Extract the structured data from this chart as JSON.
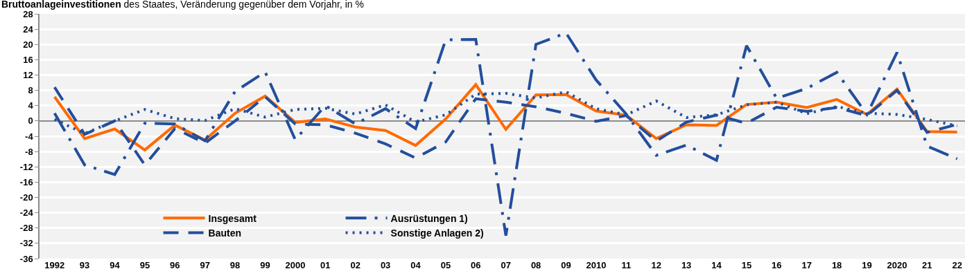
{
  "chart_data": {
    "type": "line",
    "title": "Bruttoanlageinvestitionen des Staates, Veränderung gegenüber dem Vorjahr, in %",
    "categories": [
      "1992",
      "93",
      "94",
      "95",
      "96",
      "97",
      "98",
      "99",
      "2000",
      "01",
      "02",
      "03",
      "04",
      "05",
      "06",
      "07",
      "08",
      "09",
      "2010",
      "11",
      "12",
      "13",
      "14",
      "15",
      "16",
      "17",
      "18",
      "19",
      "2020",
      "21",
      "22"
    ],
    "series": [
      {
        "name": "Insgesamt",
        "color": "#ff6a00",
        "line_style": "solid",
        "values": [
          6.3,
          -4.6,
          -2.1,
          -7.6,
          -1.1,
          -5.0,
          2.0,
          6.5,
          -0.4,
          0.5,
          -1.6,
          -2.5,
          -6.4,
          0.5,
          9.5,
          -2.2,
          6.8,
          6.9,
          2.6,
          1.5,
          -4.6,
          -1.0,
          -1.2,
          4.3,
          4.9,
          3.5,
          5.6,
          1.7,
          8.3,
          -2.8,
          -2.9
        ]
      },
      {
        "name": "Ausrüstungen 1)",
        "color": "#234e9c",
        "line_style": "dashdot",
        "values": [
          2.0,
          -11.5,
          -14.0,
          -0.6,
          -0.8,
          -5.2,
          7.7,
          12.8,
          -4.9,
          4.0,
          -0.8,
          3.2,
          -2.0,
          21.2,
          21.3,
          -30.0,
          20.0,
          23.0,
          10.7,
          1.8,
          -9.0,
          -6.3,
          -10.3,
          19.7,
          5.9,
          8.5,
          12.7,
          1.7,
          17.9,
          -6.6,
          -9.9
        ]
      },
      {
        "name": "Bauten",
        "color": "#234e9c",
        "line_style": "dashed",
        "values": [
          8.8,
          -3.5,
          0.0,
          -11.5,
          -2.0,
          -5.8,
          0.0,
          6.3,
          -0.8,
          -1.0,
          -3.2,
          -6.0,
          -9.7,
          -5.5,
          5.8,
          4.9,
          3.7,
          2.0,
          -0.1,
          1.4,
          -5.3,
          -0.3,
          1.5,
          -0.6,
          3.6,
          2.5,
          3.5,
          1.4,
          8.0,
          -3.0,
          -0.9
        ]
      },
      {
        "name": "Sonstige Anlagen 2)",
        "color": "#234e9c",
        "line_style": "dotted",
        "values": [
          0.4,
          -3.3,
          0.0,
          3.0,
          0.6,
          0.1,
          3.2,
          1.0,
          3.0,
          3.3,
          1.8,
          4.2,
          -0.3,
          1.6,
          7.0,
          7.2,
          6.0,
          7.6,
          3.2,
          1.6,
          5.2,
          0.9,
          1.6,
          4.2,
          4.9,
          1.9,
          3.8,
          2.0,
          1.7,
          0.4,
          -1.3
        ]
      }
    ],
    "ylim": [
      -36,
      28
    ],
    "yticks": [
      -36,
      -32,
      -28,
      -24,
      -20,
      -16,
      -12,
      -8,
      -4,
      0,
      4,
      8,
      12,
      16,
      20,
      24,
      28
    ],
    "grid": "y",
    "legend": "bottom left"
  }
}
